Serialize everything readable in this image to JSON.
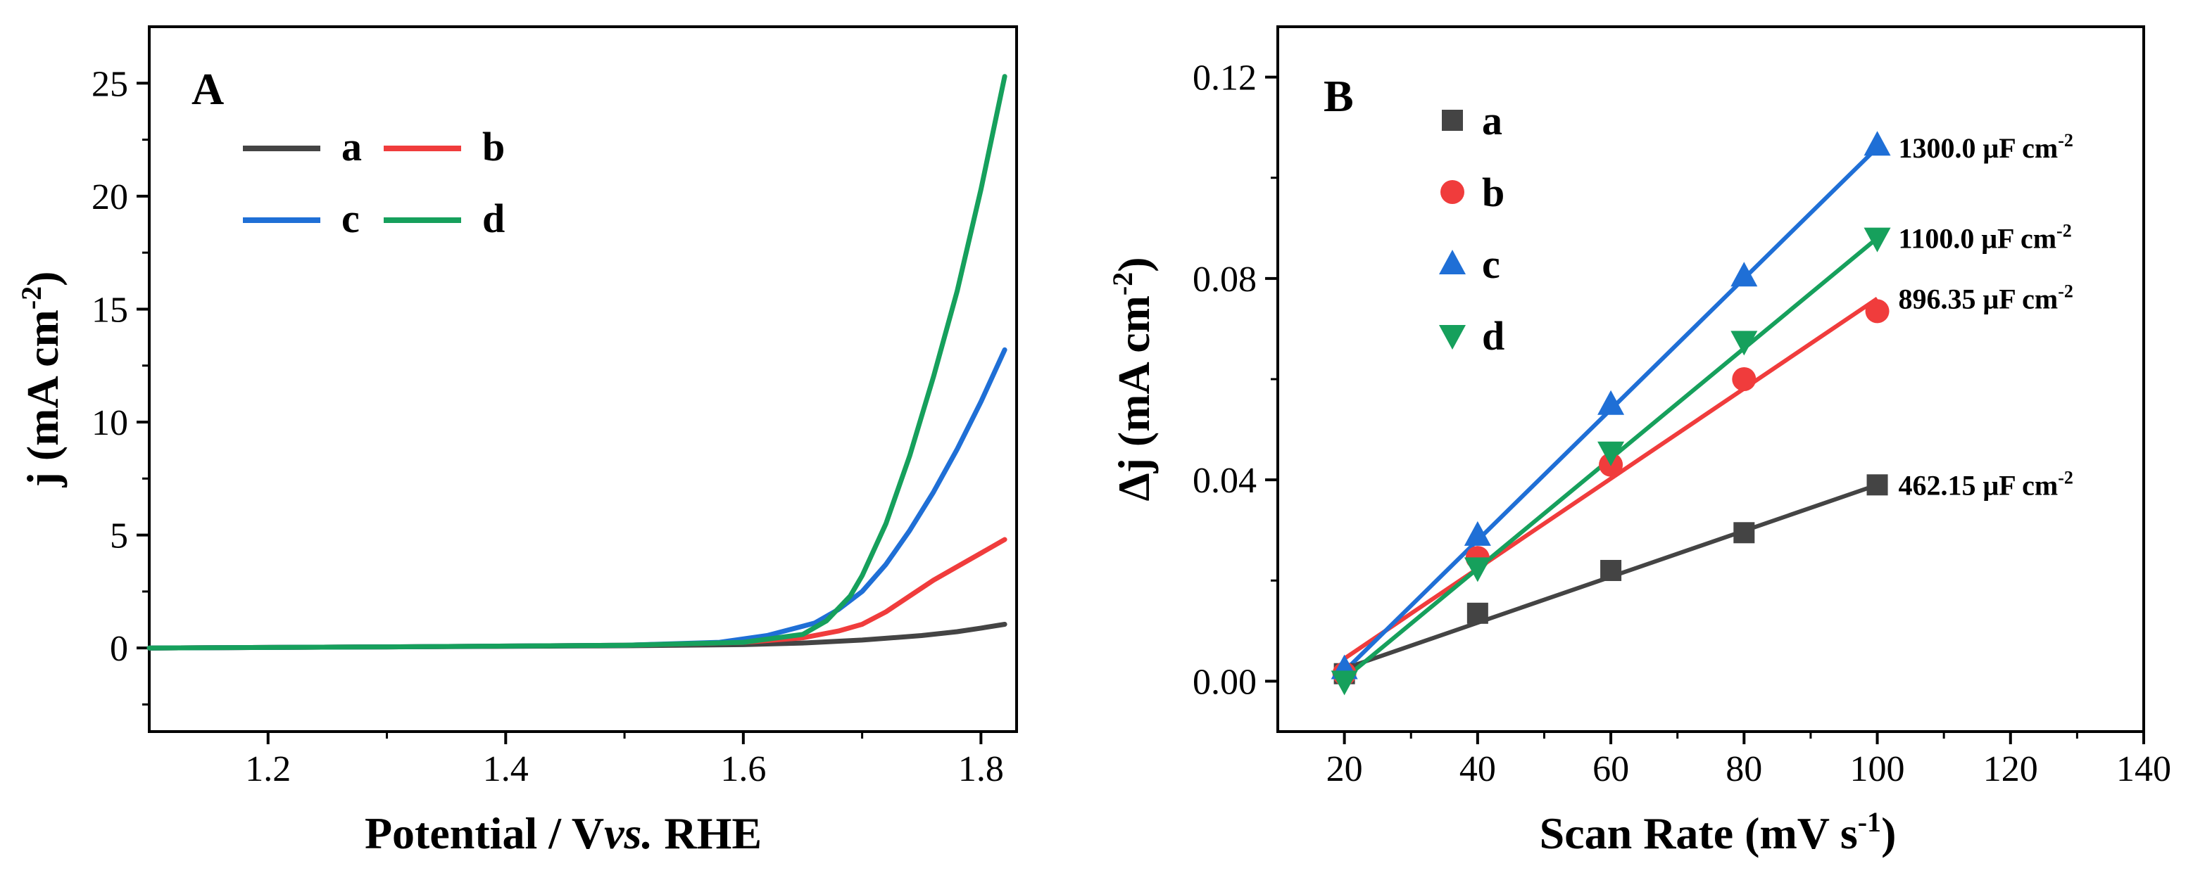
{
  "chart_data": [
    {
      "id": "A",
      "type": "line",
      "panel_label": "A",
      "xlabel_parts": [
        "Potential / V",
        "vs.",
        " RHE"
      ],
      "ylabel_main": "j (mA cm",
      "ylabel_sup": "-2",
      "ylabel_close": ")",
      "xlim": [
        1.1,
        1.83
      ],
      "ylim": [
        -3.7,
        27.5
      ],
      "xticks": [
        1.2,
        1.4,
        1.6,
        1.8
      ],
      "xtick_labels": [
        "1.2",
        "1.4",
        "1.6",
        "1.8"
      ],
      "yticks": [
        0,
        5,
        10,
        15,
        20,
        25
      ],
      "ytick_labels": [
        "0",
        "5",
        "10",
        "15",
        "20",
        "25"
      ],
      "legend_placement": "top-left",
      "grid": false,
      "series": [
        {
          "name": "a",
          "color": "#444444",
          "points": [
            [
              1.1,
              0.0
            ],
            [
              1.3,
              0.05
            ],
            [
              1.5,
              0.1
            ],
            [
              1.6,
              0.15
            ],
            [
              1.65,
              0.22
            ],
            [
              1.7,
              0.35
            ],
            [
              1.75,
              0.55
            ],
            [
              1.78,
              0.72
            ],
            [
              1.8,
              0.88
            ],
            [
              1.82,
              1.05
            ]
          ]
        },
        {
          "name": "b",
          "color": "#f03c3c",
          "points": [
            [
              1.1,
              0.0
            ],
            [
              1.3,
              0.05
            ],
            [
              1.5,
              0.12
            ],
            [
              1.6,
              0.25
            ],
            [
              1.65,
              0.45
            ],
            [
              1.68,
              0.75
            ],
            [
              1.7,
              1.05
            ],
            [
              1.72,
              1.6
            ],
            [
              1.74,
              2.3
            ],
            [
              1.76,
              3.0
            ],
            [
              1.78,
              3.6
            ],
            [
              1.8,
              4.2
            ],
            [
              1.82,
              4.8
            ]
          ]
        },
        {
          "name": "c",
          "color": "#1f6fd6",
          "points": [
            [
              1.1,
              0.0
            ],
            [
              1.3,
              0.05
            ],
            [
              1.5,
              0.12
            ],
            [
              1.58,
              0.25
            ],
            [
              1.62,
              0.55
            ],
            [
              1.66,
              1.1
            ],
            [
              1.68,
              1.7
            ],
            [
              1.7,
              2.5
            ],
            [
              1.72,
              3.7
            ],
            [
              1.74,
              5.2
            ],
            [
              1.76,
              6.9
            ],
            [
              1.78,
              8.8
            ],
            [
              1.8,
              10.9
            ],
            [
              1.82,
              13.2
            ]
          ]
        },
        {
          "name": "d",
          "color": "#16a05c",
          "points": [
            [
              1.1,
              0.0
            ],
            [
              1.3,
              0.05
            ],
            [
              1.5,
              0.12
            ],
            [
              1.6,
              0.25
            ],
            [
              1.65,
              0.6
            ],
            [
              1.67,
              1.2
            ],
            [
              1.69,
              2.3
            ],
            [
              1.7,
              3.2
            ],
            [
              1.72,
              5.5
            ],
            [
              1.74,
              8.5
            ],
            [
              1.76,
              12.0
            ],
            [
              1.78,
              15.8
            ],
            [
              1.8,
              20.3
            ],
            [
              1.82,
              25.3
            ]
          ]
        }
      ]
    },
    {
      "id": "B",
      "type": "scatter",
      "panel_label": "B",
      "xlabel_main": "Scan Rate (mV s",
      "xlabel_sup": "-1",
      "xlabel_close": ")",
      "ylabel_main": "Δj (mA cm",
      "ylabel_sup": "-2",
      "ylabel_close": ")",
      "xlim": [
        10,
        140
      ],
      "ylim": [
        -0.01,
        0.13
      ],
      "xticks": [
        20,
        40,
        60,
        80,
        100,
        120,
        140
      ],
      "xtick_labels": [
        "20",
        "40",
        "60",
        "80",
        "100",
        "120",
        "140"
      ],
      "yticks": [
        0.0,
        0.04,
        0.08,
        0.12
      ],
      "ytick_labels": [
        "0.00",
        "0.04",
        "0.08",
        "0.12"
      ],
      "legend_placement": "top-left",
      "grid": false,
      "x": [
        20,
        40,
        60,
        80,
        100
      ],
      "series": [
        {
          "name": "a",
          "color": "#444444",
          "marker": "square",
          "values": [
            0.0015,
            0.0135,
            0.022,
            0.0295,
            0.039
          ],
          "fit": [
            [
              20,
              0.0025
            ],
            [
              100,
              0.039
            ]
          ],
          "annotation": "462.15 μF cm",
          "annotation_sup": "-2"
        },
        {
          "name": "b",
          "color": "#f03c3c",
          "marker": "circle",
          "values": [
            0.0015,
            0.0245,
            0.043,
            0.06,
            0.0735
          ],
          "fit": [
            [
              20,
              0.0045
            ],
            [
              100,
              0.076
            ]
          ],
          "annotation": "896.35 μF cm",
          "annotation_sup": "-2"
        },
        {
          "name": "c",
          "color": "#1f6fd6",
          "marker": "triangle-up",
          "values": [
            0.0025,
            0.029,
            0.055,
            0.0805,
            0.1065
          ],
          "fit": [
            [
              20,
              0.002
            ],
            [
              100,
              0.106
            ]
          ],
          "annotation": "1300.0 μF cm",
          "annotation_sup": "-2"
        },
        {
          "name": "d",
          "color": "#16a05c",
          "marker": "triangle-down",
          "values": [
            0.0,
            0.0225,
            0.0455,
            0.0675,
            0.088
          ],
          "fit": [
            [
              20,
              0.0005
            ],
            [
              100,
              0.088
            ]
          ],
          "annotation": "1100.0 μF cm",
          "annotation_sup": "-2"
        }
      ]
    }
  ]
}
